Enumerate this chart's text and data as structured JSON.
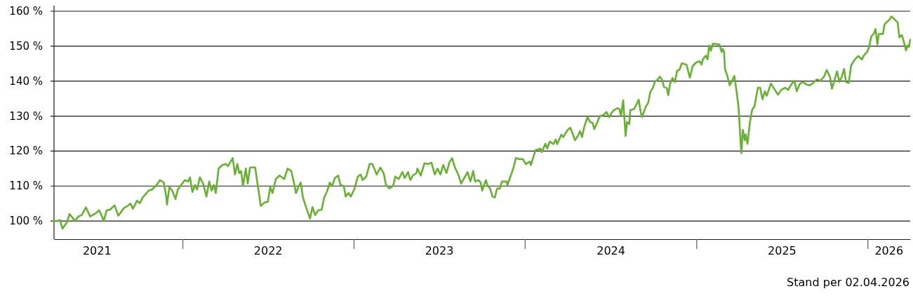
{
  "chart_data": {
    "type": "line",
    "x": [
      "2021-04-02",
      "2021-04-09",
      "2021-04-15",
      "2021-04-20",
      "2021-04-29",
      "2021-05-05",
      "2021-05-11",
      "2021-05-16",
      "2021-05-24",
      "2021-05-31",
      "2021-06-09",
      "2021-06-18",
      "2021-06-30",
      "2021-07-07",
      "2021-07-11",
      "2021-07-17",
      "2021-07-23",
      "2021-07-31",
      "2021-08-09",
      "2021-08-17",
      "2021-08-29",
      "2021-09-06",
      "2021-09-12",
      "2021-09-17",
      "2021-09-26",
      "2021-10-02",
      "2021-10-08",
      "2021-10-21",
      "2021-10-28",
      "2021-11-07",
      "2021-11-14",
      "2021-11-22",
      "2021-11-27",
      "2021-11-29",
      "2021-12-04",
      "2021-12-10",
      "2021-12-17",
      "2021-12-22",
      "2021-12-29",
      "2022-01-06",
      "2022-01-13",
      "2022-01-17",
      "2022-01-22",
      "2022-01-28",
      "2022-02-01",
      "2022-02-07",
      "2022-02-14",
      "2022-02-21",
      "2022-02-27",
      "2022-03-04",
      "2022-03-09",
      "2022-03-13",
      "2022-03-19",
      "2022-03-27",
      "2022-04-03",
      "2022-04-08",
      "2022-04-18",
      "2022-04-23",
      "2022-04-28",
      "2022-05-02",
      "2022-05-06",
      "2022-05-10",
      "2022-05-16",
      "2022-05-20",
      "2022-05-25",
      "2022-06-05",
      "2022-06-11",
      "2022-06-17",
      "2022-06-25",
      "2022-07-02",
      "2022-07-07",
      "2022-07-12",
      "2022-07-19",
      "2022-07-27",
      "2022-08-06",
      "2022-08-13",
      "2022-08-21",
      "2022-08-26",
      "2022-08-31",
      "2022-09-05",
      "2022-09-10",
      "2022-09-15",
      "2022-09-22",
      "2022-09-30",
      "2022-10-05",
      "2022-10-11",
      "2022-10-17",
      "2022-10-25",
      "2022-10-30",
      "2022-11-06",
      "2022-11-11",
      "2022-11-16",
      "2022-11-22",
      "2022-11-29",
      "2022-12-04",
      "2022-12-11",
      "2022-12-15",
      "2022-12-21",
      "2022-12-26",
      "2023-01-03",
      "2023-01-10",
      "2023-01-16",
      "2023-01-20",
      "2023-01-28",
      "2023-02-04",
      "2023-02-10",
      "2023-02-14",
      "2023-02-19",
      "2023-02-27",
      "2023-03-06",
      "2023-03-11",
      "2023-03-18",
      "2023-03-26",
      "2023-03-31",
      "2023-04-07",
      "2023-04-15",
      "2023-04-20",
      "2023-04-27",
      "2023-05-02",
      "2023-05-07",
      "2023-05-15",
      "2023-05-17",
      "2023-05-24",
      "2023-06-01",
      "2023-06-09",
      "2023-06-16",
      "2023-06-23",
      "2023-06-29",
      "2023-07-05",
      "2023-07-11",
      "2023-07-18",
      "2023-07-24",
      "2023-07-30",
      "2023-08-05",
      "2023-08-13",
      "2023-08-18",
      "2023-08-25",
      "2023-09-01",
      "2023-09-07",
      "2023-09-13",
      "2023-09-17",
      "2023-09-24",
      "2023-09-29",
      "2023-10-02",
      "2023-10-10",
      "2023-10-14",
      "2023-10-19",
      "2023-10-24",
      "2023-10-29",
      "2023-11-03",
      "2023-11-09",
      "2023-11-13",
      "2023-11-23",
      "2023-11-25",
      "2023-12-03",
      "2023-12-08",
      "2023-12-13",
      "2023-12-20",
      "2023-12-28",
      "2024-01-03",
      "2024-01-12",
      "2024-01-14",
      "2024-01-24",
      "2024-02-03",
      "2024-02-06",
      "2024-02-14",
      "2024-02-18",
      "2024-02-23",
      "2024-03-02",
      "2024-03-07",
      "2024-03-10",
      "2024-03-19",
      "2024-03-23",
      "2024-04-01",
      "2024-04-07",
      "2024-04-12",
      "2024-04-17",
      "2024-04-23",
      "2024-04-28",
      "2024-05-02",
      "2024-05-07",
      "2024-05-14",
      "2024-05-19",
      "2024-05-25",
      "2024-05-28",
      "2024-06-02",
      "2024-06-09",
      "2024-06-17",
      "2024-06-23",
      "2024-06-29",
      "2024-07-04",
      "2024-07-09",
      "2024-07-17",
      "2024-07-21",
      "2024-07-24",
      "2024-07-29",
      "2024-08-03",
      "2024-08-06",
      "2024-08-11",
      "2024-08-13",
      "2024-08-21",
      "2024-08-26",
      "2024-08-31",
      "2024-09-04",
      "2024-09-07",
      "2024-09-15",
      "2024-09-20",
      "2024-09-25",
      "2024-09-30",
      "2024-10-05",
      "2024-10-10",
      "2024-10-15",
      "2024-10-20",
      "2024-10-24",
      "2024-10-30",
      "2024-11-02",
      "2024-11-06",
      "2024-11-11",
      "2024-11-16",
      "2024-11-21",
      "2024-11-26",
      "2024-12-01",
      "2024-12-11",
      "2024-12-18",
      "2024-12-24",
      "2024-12-31",
      "2025-01-08",
      "2025-01-12",
      "2025-01-15",
      "2025-01-21",
      "2025-01-25",
      "2025-01-28",
      "2025-02-01",
      "2025-02-05",
      "2025-02-19",
      "2025-02-24",
      "2025-02-26",
      "2025-03-01",
      "2025-03-03",
      "2025-03-08",
      "2025-03-13",
      "2025-03-18",
      "2025-03-23",
      "2025-03-28",
      "2025-04-01",
      "2025-04-05",
      "2025-04-07",
      "2025-04-10",
      "2025-04-14",
      "2025-04-16",
      "2025-04-20",
      "2025-04-25",
      "2025-04-30",
      "2025-05-05",
      "2025-05-12",
      "2025-05-17",
      "2025-05-22",
      "2025-05-27",
      "2025-05-31",
      "2025-06-09",
      "2025-06-16",
      "2025-06-24",
      "2025-07-01",
      "2025-07-09",
      "2025-07-16",
      "2025-07-21",
      "2025-07-29",
      "2025-08-03",
      "2025-08-09",
      "2025-08-16",
      "2025-08-23",
      "2025-08-31",
      "2025-09-07",
      "2025-09-15",
      "2025-09-22",
      "2025-09-30",
      "2025-10-06",
      "2025-10-13",
      "2025-10-17",
      "2025-10-23",
      "2025-10-28",
      "2025-11-02",
      "2025-11-07",
      "2025-11-12",
      "2025-11-16",
      "2025-11-22",
      "2025-11-27",
      "2025-12-05",
      "2025-12-12",
      "2025-12-20",
      "2025-12-25",
      "2026-01-01",
      "2026-01-05",
      "2026-01-09",
      "2026-01-14",
      "2026-01-18",
      "2026-01-22",
      "2026-01-25",
      "2026-02-03",
      "2026-02-06",
      "2026-02-11",
      "2026-02-16",
      "2026-02-21",
      "2026-02-26",
      "2026-03-03",
      "2026-03-06",
      "2026-03-10",
      "2026-03-15",
      "2026-03-19",
      "2026-03-24",
      "2026-03-28",
      "2026-03-30",
      "2026-04-02"
    ],
    "series": [
      {
        "color": "#66b131",
        "values": [
          100.0,
          100.0,
          100.2,
          97.8,
          99.5,
          102.0,
          101.0,
          100.0,
          101.3,
          101.7,
          103.9,
          101.3,
          102.2,
          103.1,
          102.0,
          100.0,
          103.0,
          103.3,
          104.5,
          101.5,
          103.7,
          104.3,
          105.0,
          103.5,
          105.8,
          105.1,
          106.7,
          108.7,
          109.0,
          110.3,
          111.7,
          111.0,
          107.3,
          104.7,
          109.7,
          108.7,
          106.3,
          109.0,
          110.3,
          111.7,
          111.3,
          112.5,
          108.3,
          110.3,
          109.0,
          112.5,
          110.7,
          107.0,
          111.3,
          108.7,
          110.3,
          108.0,
          115.0,
          116.0,
          116.3,
          115.7,
          118.0,
          113.3,
          116.3,
          113.7,
          114.3,
          110.0,
          115.0,
          110.7,
          115.3,
          115.3,
          109.7,
          104.3,
          105.3,
          105.5,
          109.7,
          108.0,
          112.0,
          113.0,
          112.0,
          115.0,
          114.3,
          111.3,
          108.0,
          109.7,
          111.0,
          106.7,
          103.7,
          100.7,
          104.0,
          101.7,
          103.0,
          103.3,
          106.7,
          108.7,
          111.0,
          110.0,
          112.3,
          113.0,
          110.3,
          110.0,
          107.0,
          108.0,
          107.0,
          109.3,
          112.7,
          113.3,
          111.7,
          112.7,
          116.3,
          116.3,
          115.0,
          113.3,
          115.3,
          113.7,
          110.3,
          109.3,
          110.0,
          112.7,
          112.0,
          114.0,
          112.3,
          114.0,
          111.7,
          113.0,
          113.7,
          115.0,
          113.0,
          116.5,
          116.3,
          116.7,
          113.3,
          115.0,
          113.3,
          116.0,
          113.7,
          116.7,
          118.0,
          115.3,
          113.0,
          110.7,
          112.3,
          114.0,
          111.3,
          114.3,
          111.3,
          111.7,
          111.0,
          108.7,
          111.7,
          110.0,
          109.3,
          107.0,
          106.7,
          109.3,
          109.3,
          111.3,
          111.3,
          110.3,
          113.3,
          115.3,
          118.0,
          117.7,
          117.7,
          116.3,
          117.0,
          116.0,
          120.3,
          120.7,
          119.7,
          122.1,
          120.7,
          122.7,
          122.0,
          123.3,
          122.0,
          124.7,
          124.0,
          126.0,
          126.7,
          125.0,
          123.1,
          124.3,
          125.7,
          124.0,
          127.0,
          129.8,
          128.3,
          128.0,
          126.3,
          127.7,
          130.0,
          130.3,
          131.2,
          129.7,
          130.9,
          131.7,
          132.3,
          132.0,
          130.0,
          134.5,
          124.3,
          128.3,
          127.7,
          131.7,
          132.0,
          133.3,
          134.7,
          131.3,
          129.7,
          132.7,
          133.7,
          137.0,
          138.0,
          140.0,
          140.3,
          141.3,
          140.3,
          138.3,
          138.0,
          136.0,
          139.3,
          140.9,
          139.7,
          143.0,
          143.3,
          145.1,
          144.7,
          141.0,
          144.3,
          145.3,
          145.7,
          144.7,
          146.3,
          147.3,
          146.3,
          150.2,
          148.7,
          150.7,
          150.5,
          148.3,
          149.2,
          148.5,
          143.5,
          141.5,
          138.8,
          140.1,
          141.5,
          136.8,
          132.5,
          123.1,
          119.4,
          126.1,
          123.1,
          124.8,
          122.1,
          128.1,
          131.8,
          132.8,
          138.1,
          138.1,
          134.8,
          137.1,
          135.8,
          139.3,
          137.8,
          136.1,
          137.5,
          138.1,
          137.5,
          138.8,
          140.1,
          137.1,
          139.1,
          139.8,
          139.1,
          138.8,
          139.5,
          140.5,
          140.1,
          141.2,
          143.2,
          141.2,
          137.8,
          140.5,
          142.8,
          139.8,
          141.2,
          143.5,
          139.8,
          139.5,
          144.5,
          146.2,
          147.2,
          146.2,
          147.5,
          148.5,
          150.2,
          152.8,
          153.5,
          154.9,
          150.5,
          153.5,
          153.5,
          156.2,
          156.9,
          157.5,
          158.5,
          157.9,
          157.2,
          156.9,
          152.5,
          153.2,
          151.5,
          148.8,
          150.2,
          149.8,
          151.8
        ]
      }
    ],
    "xlim": [
      "2021-04-02",
      "2026-04-02"
    ],
    "xticks": [
      {
        "value": "2021-07-02",
        "label": "2021"
      },
      {
        "value": "2022-01-01",
        "label": null
      },
      {
        "value": "2022-07-02",
        "label": "2022"
      },
      {
        "value": "2023-01-01",
        "label": null
      },
      {
        "value": "2023-07-02",
        "label": "2023"
      },
      {
        "value": "2024-01-01",
        "label": null
      },
      {
        "value": "2024-07-02",
        "label": "2024"
      },
      {
        "value": "2025-01-01",
        "label": null
      },
      {
        "value": "2025-07-02",
        "label": "2025"
      },
      {
        "value": "2026-01-01",
        "label": null
      },
      {
        "value": "2026-02-15",
        "label": "2026"
      }
    ],
    "ylim": [
      94.8,
      161.6
    ],
    "yticks": [
      {
        "value": 100,
        "label": "100 %"
      },
      {
        "value": 110,
        "label": "110 %"
      },
      {
        "value": 120,
        "label": "120 %"
      },
      {
        "value": 130,
        "label": "130 %"
      },
      {
        "value": 140,
        "label": "140 %"
      },
      {
        "value": 150,
        "label": "150 %"
      },
      {
        "value": 160,
        "label": "160 %"
      }
    ],
    "grid": "y",
    "annotations": [
      "Stand per 02.04.2026"
    ]
  }
}
